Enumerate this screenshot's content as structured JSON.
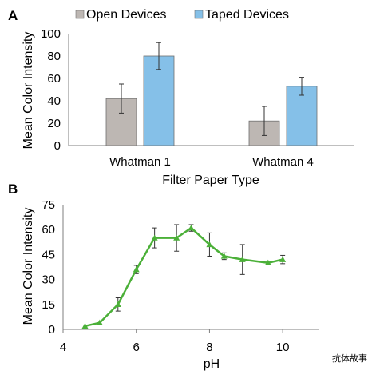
{
  "panel_a_label": "A",
  "panel_b_label": "B",
  "watermark": "抗体故事",
  "chart_data": [
    {
      "type": "bar",
      "panel": "A",
      "categories": [
        "Whatman 1",
        "Whatman 4"
      ],
      "series": [
        {
          "name": "Open Devices",
          "color": "#bdb7b3",
          "values": [
            42,
            22
          ],
          "errors": [
            13,
            13
          ]
        },
        {
          "name": "Taped Devices",
          "color": "#85c0e8",
          "values": [
            80,
            53
          ],
          "errors": [
            12,
            8
          ]
        }
      ],
      "xlabel": "Filter Paper Type",
      "ylabel": "Mean Color Intensity",
      "ylim": [
        0,
        100
      ],
      "yticks": [
        0,
        20,
        40,
        60,
        80,
        100
      ],
      "grid": false,
      "legend": "top"
    },
    {
      "type": "line",
      "panel": "B",
      "series": [
        {
          "color": "#4bb038",
          "marker": "triangle",
          "x": [
            4.6,
            5.0,
            5.5,
            6.0,
            6.5,
            7.1,
            7.5,
            8.0,
            8.4,
            8.9,
            9.6,
            10.0
          ],
          "y": [
            2,
            4,
            15,
            36,
            55,
            55,
            61,
            51,
            44,
            42,
            40,
            42
          ],
          "errors": [
            0.5,
            0.5,
            4,
            2.5,
            6,
            8,
            2,
            7,
            2,
            9,
            1,
            2.5
          ]
        }
      ],
      "xlabel": "pH",
      "ylabel": "Mean Color Intensity",
      "xlim": [
        4,
        11
      ],
      "xticks": [
        4,
        6,
        8,
        10
      ],
      "ylim": [
        0,
        75
      ],
      "yticks": [
        0,
        15,
        30,
        45,
        60,
        75
      ],
      "grid": false
    }
  ]
}
